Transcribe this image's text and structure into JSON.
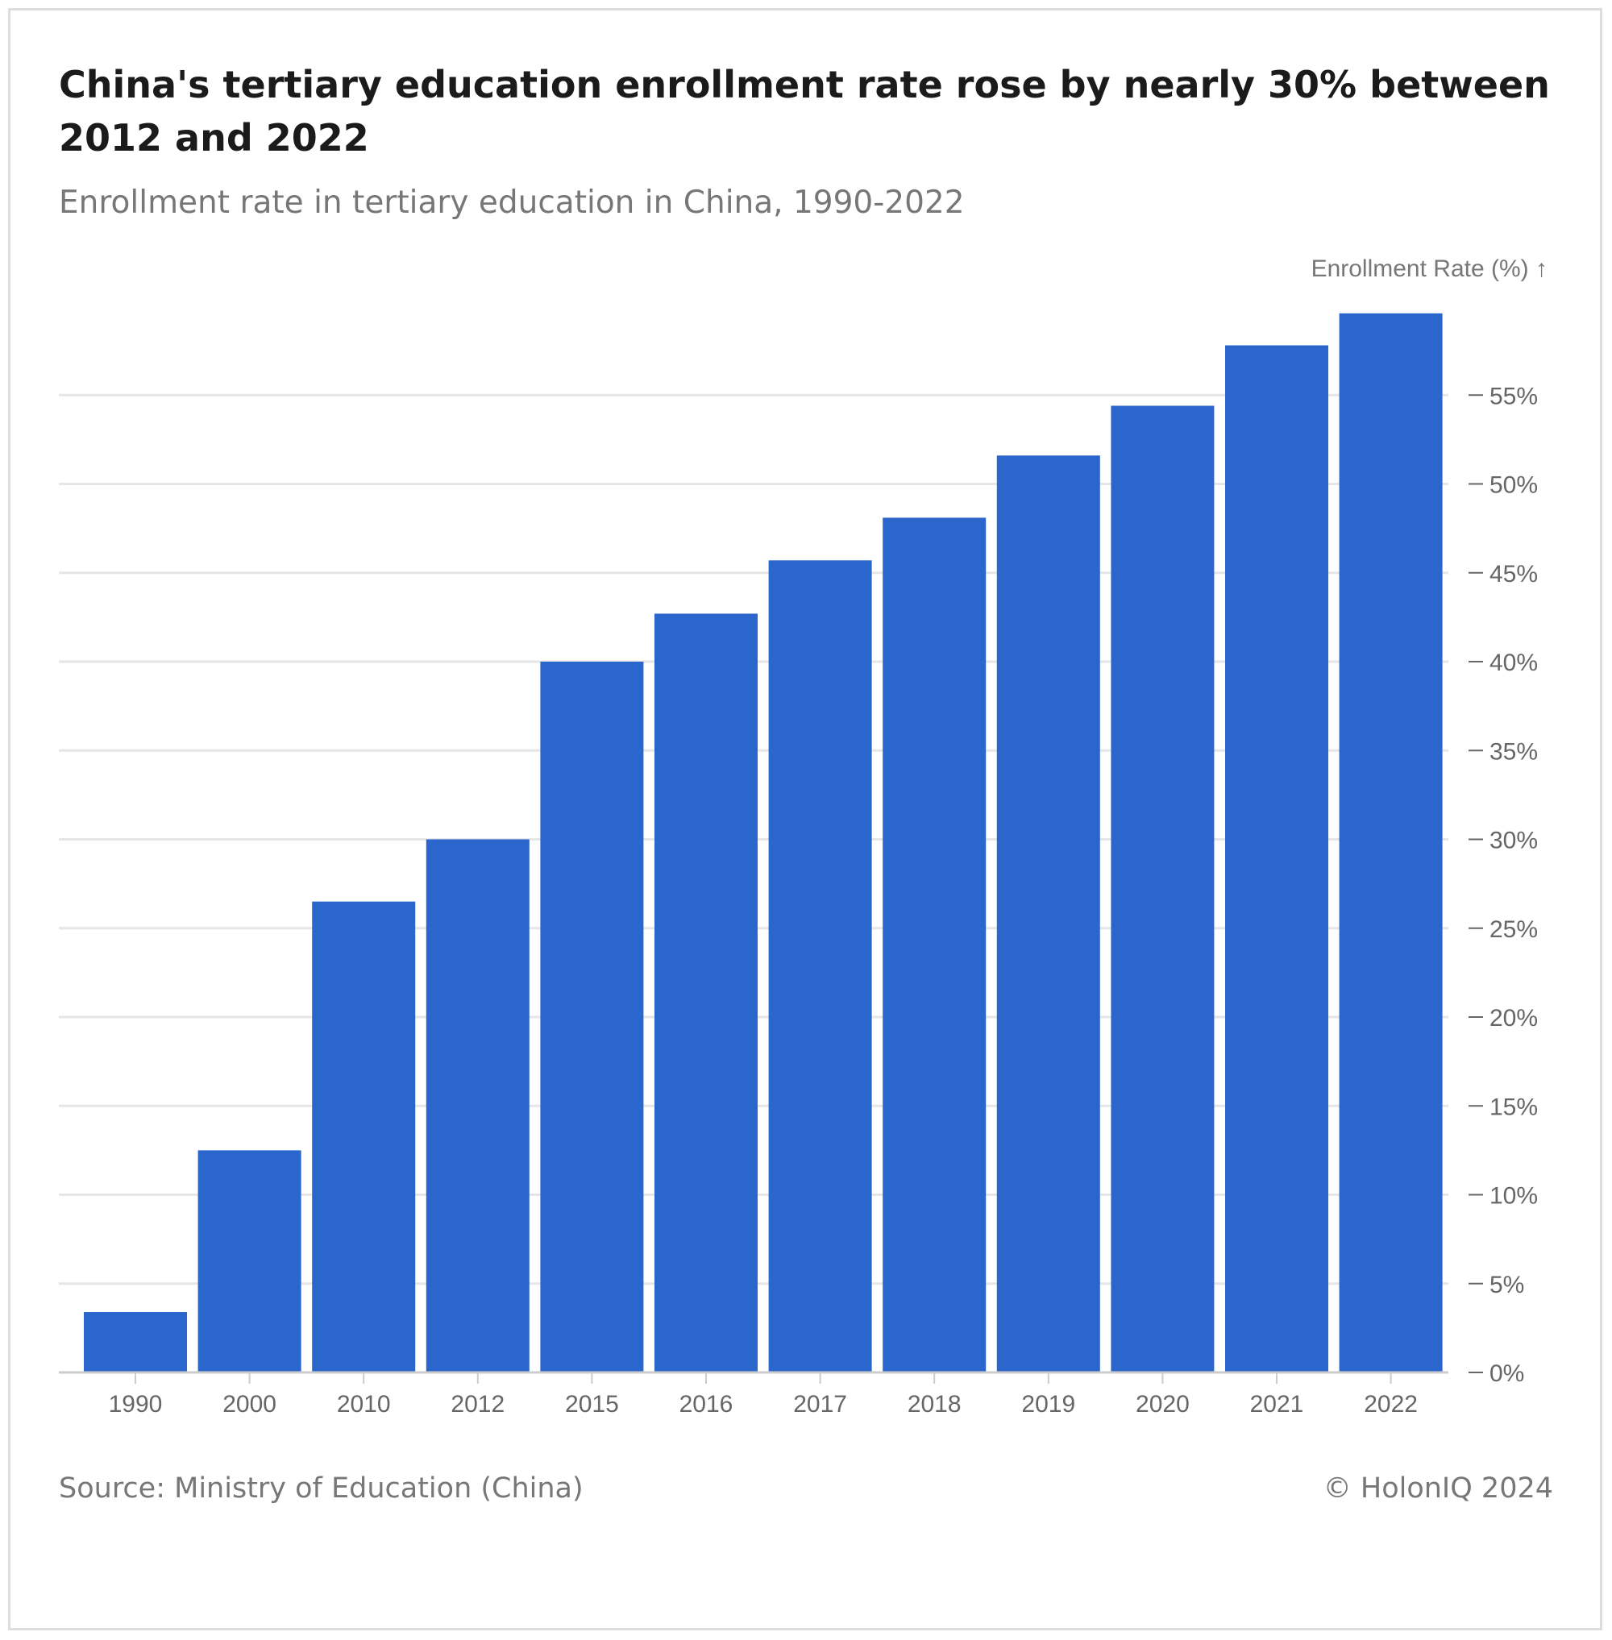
{
  "header": {
    "title": "China's tertiary education enrollment rate rose by nearly 30% between 2012 and 2022",
    "subtitle": "Enrollment rate in tertiary education in China, 1990-2022"
  },
  "footer": {
    "source": "Source: Ministry of Education (China)",
    "credit": "© HolonIQ 2024"
  },
  "chart_data": {
    "type": "bar",
    "title": "China's tertiary education enrollment rate rose by nearly 30% between 2012 and 2022",
    "subtitle": "Enrollment rate in tertiary education in China, 1990-2022",
    "categories": [
      "1990",
      "2000",
      "2010",
      "2012",
      "2015",
      "2016",
      "2017",
      "2018",
      "2019",
      "2020",
      "2021",
      "2022"
    ],
    "values": [
      3.4,
      12.5,
      26.5,
      30.0,
      40.0,
      42.7,
      45.7,
      48.1,
      51.6,
      54.4,
      57.8,
      59.6
    ],
    "ylabel": "Enrollment Rate (%) ↑",
    "ylim": [
      0,
      60
    ],
    "yticks": [
      0,
      5,
      10,
      15,
      20,
      25,
      30,
      35,
      40,
      45,
      50,
      55
    ],
    "ytick_suffix": "%",
    "y_axis_position": "right",
    "grid": true,
    "legend": "none",
    "colors": {
      "bar": "#2b66cc",
      "grid": "#e6e6e6",
      "axis": "#cccccc",
      "tick": "#666666"
    }
  }
}
